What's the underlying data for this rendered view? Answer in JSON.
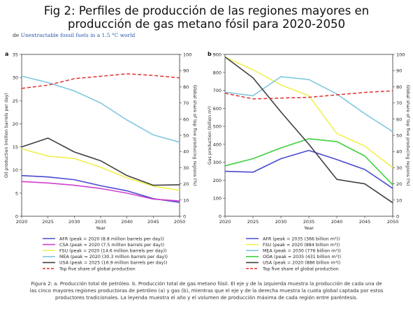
{
  "title_line1": "Fig 2: Perfiles de producción de las regiones mayores en",
  "title_line2": "producción de gas metano fósil para 2020-2050",
  "source_prefix": "de",
  "source_link": "Unextractable fossil fuels in a 1.5 °C world",
  "caption_line1": "Figura 2: a. Producción total de petróleo. b. Producción total de gas metano fósil. El eje y de la izquierda muestra la producción de cada una de",
  "caption_line2": "las cinco mayores regiones productoras de petróleo (a) y gas (b), mientras que el eje y de la derecha muestra la cuota global captada por estos",
  "caption_line3": "productores tradicionales. La leyenda muestra el año y el volumen de producción máxima de cada región entre paréntesis.",
  "chart_data": [
    {
      "panel": "a",
      "type": "line",
      "x": [
        2020,
        2025,
        2030,
        2035,
        2040,
        2045,
        2050
      ],
      "xlabel": "Year",
      "ylabel": "Oil production (million barrels per day)",
      "ylabel_right": "Global share of top five producing regions (%)",
      "ylim": [
        0,
        35
      ],
      "yticks": [
        0,
        5,
        10,
        15,
        20,
        25,
        30,
        35
      ],
      "ylim_right": [
        0,
        100
      ],
      "yticks_right": [
        0,
        10,
        20,
        30,
        40,
        50,
        60,
        70,
        80,
        90,
        100
      ],
      "series": [
        {
          "name": "AFR (peak = 2020 (8.8 million barrels per day))",
          "color": "#4a4ad0",
          "values": [
            8.8,
            8.5,
            7.9,
            6.6,
            5.5,
            3.8,
            3.0
          ]
        },
        {
          "name": "CSA (peak = 2020 (7.5 million barrels per day))",
          "color": "#d040d0",
          "values": [
            7.5,
            7.2,
            6.7,
            6.0,
            5.0,
            3.7,
            3.3
          ]
        },
        {
          "name": "FSU (peak = 2020 (14.6 million barrels per day))",
          "color": "#f0f050",
          "values": [
            14.6,
            13.0,
            12.5,
            10.6,
            8.3,
            6.5,
            5.6
          ]
        },
        {
          "name": "MEA (peak = 2020 (30.3 million barrels per day))",
          "color": "#80c8e0",
          "values": [
            30.3,
            28.9,
            27.1,
            24.5,
            20.8,
            17.6,
            16.0
          ]
        },
        {
          "name": "USA (peak = 2025 (16.9 million barrels per day))",
          "color": "#404040",
          "values": [
            15.0,
            16.9,
            13.9,
            12.0,
            8.8,
            6.7,
            6.8
          ]
        }
      ],
      "share": {
        "name": "Top five share of global production",
        "color": "#e03030",
        "values": [
          79,
          81,
          85,
          86.5,
          88,
          87,
          85.5
        ]
      }
    },
    {
      "panel": "b",
      "type": "line",
      "x": [
        2020,
        2025,
        2030,
        2035,
        2040,
        2045,
        2050
      ],
      "xlabel": "Year",
      "ylabel": "Gas production (billion m³)",
      "ylabel_right": "Global share of top five producing regions (%)",
      "ylim": [
        0,
        900
      ],
      "yticks": [
        0,
        100,
        200,
        300,
        400,
        500,
        600,
        700,
        800,
        900
      ],
      "ylim_right": [
        0,
        100
      ],
      "yticks_right": [
        0,
        10,
        20,
        30,
        40,
        50,
        60,
        70,
        80,
        90,
        100
      ],
      "series": [
        {
          "name": "AFR (peak = 2035 (366 billion m³))",
          "color": "#4a4ad0",
          "values": [
            250,
            245,
            320,
            366,
            315,
            260,
            155
          ]
        },
        {
          "name": "FSU (peak = 2020 (884 billion m³))",
          "color": "#f0f050",
          "values": [
            884,
            815,
            730,
            670,
            460,
            390,
            270
          ]
        },
        {
          "name": "MEA (peak = 2030 (776 billion m³))",
          "color": "#80c8e0",
          "values": [
            690,
            670,
            776,
            760,
            680,
            570,
            470
          ]
        },
        {
          "name": "ODA (peak = 2035 (431 billion m³))",
          "color": "#40d040",
          "values": [
            280,
            320,
            380,
            431,
            415,
            335,
            175
          ]
        },
        {
          "name": "USA (peak = 2020 (886 billion m³))",
          "color": "#404040",
          "values": [
            886,
            770,
            580,
            400,
            205,
            180,
            75
          ]
        }
      ],
      "share": {
        "name": "Top five share of global production",
        "color": "#e03030",
        "values": [
          76,
          72.5,
          73,
          73.5,
          75,
          76.5,
          77.5
        ]
      }
    }
  ]
}
